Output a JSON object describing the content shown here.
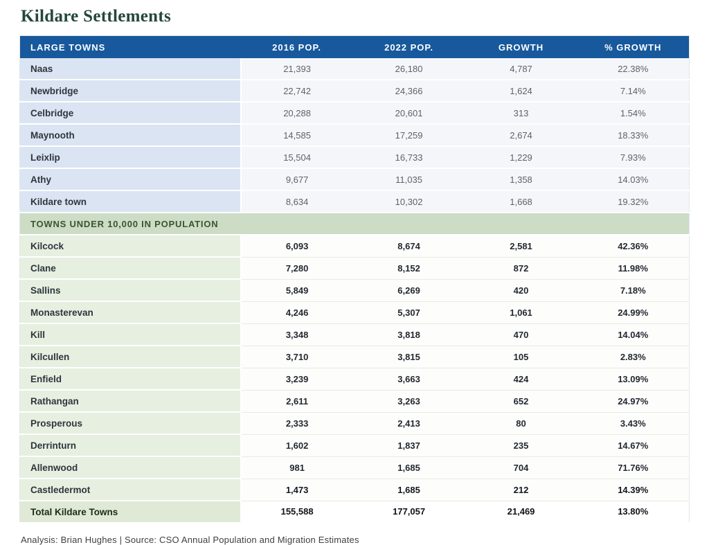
{
  "page": {
    "title": "Kildare Settlements",
    "footer": "Analysis: Brian Hughes  |  Source: CSO Annual Population and Migration Estimates"
  },
  "colors": {
    "header_blue": "#17599c",
    "large_town_name_bg": "#dae4f3",
    "section_green_bg": "#cddcc5",
    "small_town_name_bg": "#e7efe1",
    "title_color": "#25473a"
  },
  "table": {
    "columns": [
      "Large Towns",
      "2016 Pop.",
      "2022 Pop.",
      "Growth",
      "% Growth"
    ],
    "section2_header": "TOWNS UNDER 10,000 IN POPULATION",
    "large_towns": [
      {
        "name": "Naas",
        "pop2016": "21,393",
        "pop2022": "26,180",
        "growth": "4,787",
        "pct_growth": "22.38%"
      },
      {
        "name": "Newbridge",
        "pop2016": "22,742",
        "pop2022": "24,366",
        "growth": "1,624",
        "pct_growth": "7.14%"
      },
      {
        "name": "Celbridge",
        "pop2016": "20,288",
        "pop2022": "20,601",
        "growth": "313",
        "pct_growth": "1.54%"
      },
      {
        "name": "Maynooth",
        "pop2016": "14,585",
        "pop2022": "17,259",
        "growth": "2,674",
        "pct_growth": "18.33%"
      },
      {
        "name": "Leixlip",
        "pop2016": "15,504",
        "pop2022": "16,733",
        "growth": "1,229",
        "pct_growth": "7.93%"
      },
      {
        "name": "Athy",
        "pop2016": "9,677",
        "pop2022": "11,035",
        "growth": "1,358",
        "pct_growth": "14.03%"
      },
      {
        "name": "Kildare town",
        "pop2016": "8,634",
        "pop2022": "10,302",
        "growth": "1,668",
        "pct_growth": "19.32%"
      }
    ],
    "small_towns": [
      {
        "name": "Kilcock",
        "pop2016": "6,093",
        "pop2022": "8,674",
        "growth": "2,581",
        "pct_growth": "42.36%"
      },
      {
        "name": "Clane",
        "pop2016": "7,280",
        "pop2022": "8,152",
        "growth": "872",
        "pct_growth": "11.98%"
      },
      {
        "name": "Sallins",
        "pop2016": "5,849",
        "pop2022": "6,269",
        "growth": "420",
        "pct_growth": "7.18%"
      },
      {
        "name": "Monasterevan",
        "pop2016": "4,246",
        "pop2022": "5,307",
        "growth": "1,061",
        "pct_growth": "24.99%"
      },
      {
        "name": "Kill",
        "pop2016": "3,348",
        "pop2022": "3,818",
        "growth": "470",
        "pct_growth": "14.04%"
      },
      {
        "name": "Kilcullen",
        "pop2016": "3,710",
        "pop2022": "3,815",
        "growth": "105",
        "pct_growth": "2.83%"
      },
      {
        "name": "Enfield",
        "pop2016": "3,239",
        "pop2022": "3,663",
        "growth": "424",
        "pct_growth": "13.09%"
      },
      {
        "name": "Rathangan",
        "pop2016": "2,611",
        "pop2022": "3,263",
        "growth": "652",
        "pct_growth": "24.97%"
      },
      {
        "name": "Prosperous",
        "pop2016": "2,333",
        "pop2022": "2,413",
        "growth": "80",
        "pct_growth": "3.43%"
      },
      {
        "name": "Derrinturn",
        "pop2016": "1,602",
        "pop2022": "1,837",
        "growth": "235",
        "pct_growth": "14.67%"
      },
      {
        "name": "Allenwood",
        "pop2016": "981",
        "pop2022": "1,685",
        "growth": "704",
        "pct_growth": "71.76%"
      },
      {
        "name": "Castledermot",
        "pop2016": "1,473",
        "pop2022": "1,685",
        "growth": "212",
        "pct_growth": "14.39%"
      }
    ],
    "total": {
      "name": "Total Kildare Towns",
      "pop2016": "155,588",
      "pop2022": "177,057",
      "growth": "21,469",
      "pct_growth": "13.80%"
    }
  }
}
